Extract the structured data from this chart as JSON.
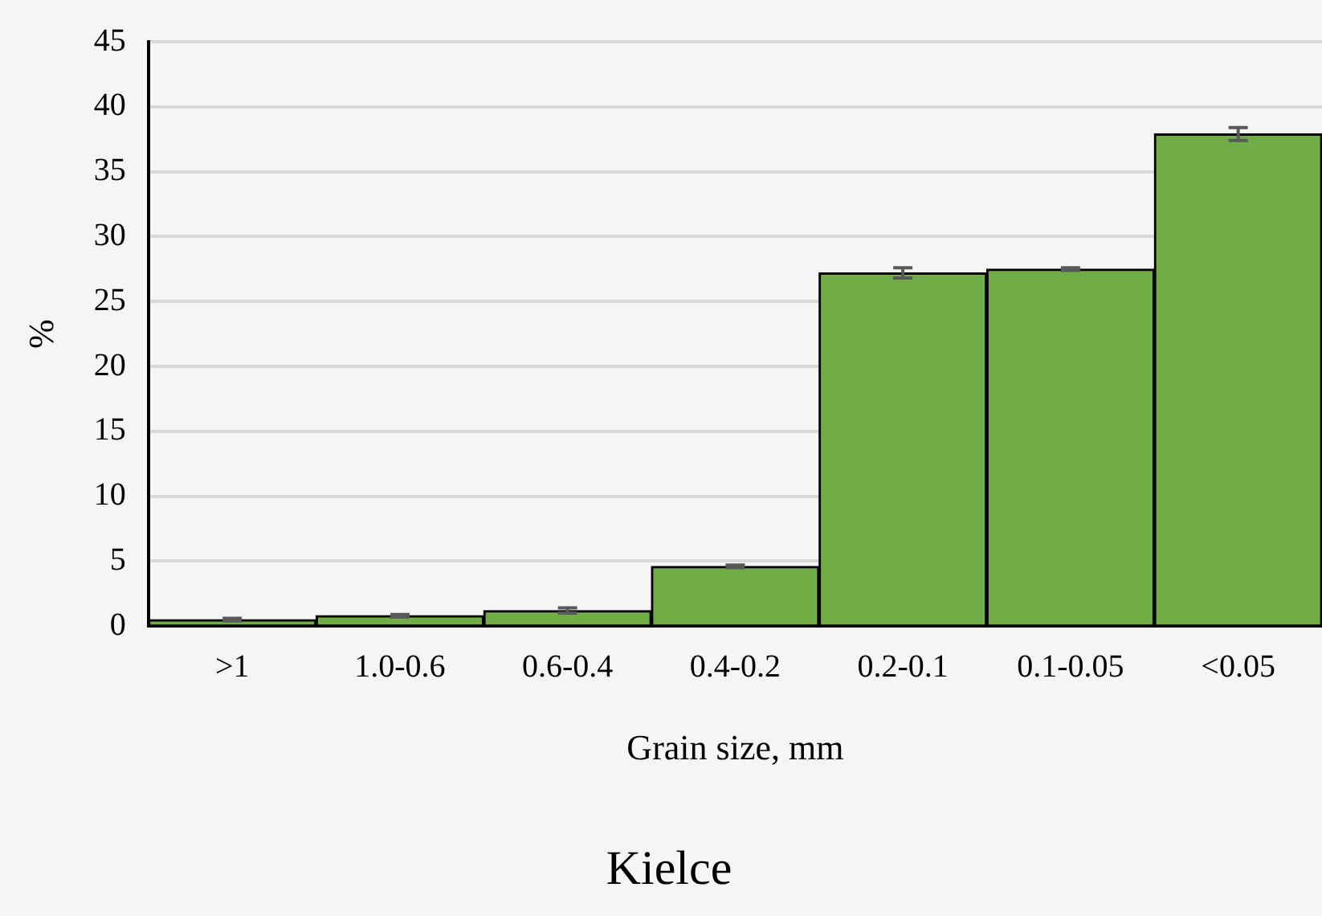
{
  "chart_data": {
    "type": "bar",
    "title": "Kielce",
    "xlabel": "Grain size, mm",
    "ylabel": "%",
    "categories": [
      ">1",
      "1.0-0.6",
      "0.6-0.4",
      "0.4-0.2",
      "0.2-0.1",
      "0.1-0.05",
      "<0.05"
    ],
    "values": [
      0.5,
      0.8,
      1.2,
      4.6,
      27.2,
      27.5,
      37.9
    ],
    "errors": [
      0.1,
      0.1,
      0.2,
      0.1,
      0.4,
      0.1,
      0.5
    ],
    "color": "#70ad47",
    "ylim": [
      0,
      45
    ],
    "yticks": [
      0,
      5,
      10,
      15,
      20,
      25,
      30,
      35,
      40,
      45
    ],
    "grid": "y",
    "legend": false
  }
}
